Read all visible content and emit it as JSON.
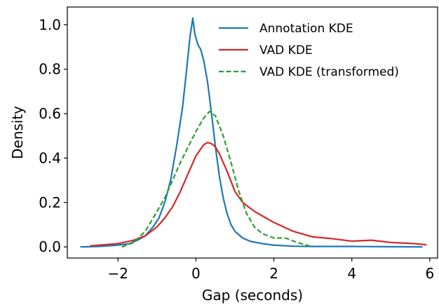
{
  "chart_data": {
    "type": "line",
    "xlabel": "Gap (seconds)",
    "ylabel": "Density",
    "xlim": [
      -3.3,
      6.2
    ],
    "ylim": [
      -0.05,
      1.08
    ],
    "x_ticks": [
      -2,
      0,
      2,
      4,
      6
    ],
    "x_tick_labels": [
      "−2",
      "0",
      "2",
      "4",
      "6"
    ],
    "y_ticks": [
      0.0,
      0.2,
      0.4,
      0.6,
      0.8,
      1.0
    ],
    "y_tick_labels": [
      "0.0",
      "0.2",
      "0.4",
      "0.6",
      "0.8",
      "1.0"
    ],
    "grid": false,
    "legend_position": "top-right",
    "series": [
      {
        "name": "Annotation KDE",
        "color": "#1f77b4",
        "dash": "solid",
        "x": [
          -2.95,
          -2.5,
          -2.0,
          -1.7,
          -1.5,
          -1.3,
          -1.1,
          -0.95,
          -0.8,
          -0.65,
          -0.5,
          -0.35,
          -0.25,
          -0.15,
          -0.08,
          -0.03,
          0.05,
          0.12,
          0.2,
          0.3,
          0.4,
          0.5,
          0.6,
          0.7,
          0.8,
          0.9,
          1.0,
          1.2,
          1.4,
          1.7,
          2.0,
          2.5,
          3.0,
          4.0,
          5.0,
          5.8
        ],
        "y": [
          0.0,
          0.002,
          0.008,
          0.015,
          0.03,
          0.05,
          0.09,
          0.13,
          0.2,
          0.3,
          0.45,
          0.62,
          0.78,
          0.95,
          1.03,
          0.96,
          0.91,
          0.89,
          0.84,
          0.74,
          0.6,
          0.45,
          0.32,
          0.22,
          0.15,
          0.1,
          0.07,
          0.04,
          0.025,
          0.015,
          0.008,
          0.003,
          0.002,
          0.002,
          0.001,
          0.0
        ]
      },
      {
        "name": "VAD KDE",
        "color": "#d62728",
        "dash": "solid",
        "x": [
          -2.7,
          -2.0,
          -1.6,
          -1.3,
          -1.0,
          -0.8,
          -0.6,
          -0.4,
          -0.2,
          0.0,
          0.2,
          0.3,
          0.4,
          0.5,
          0.6,
          0.8,
          1.0,
          1.2,
          1.5,
          2.0,
          2.5,
          3.0,
          3.5,
          4.0,
          4.5,
          5.0,
          5.5,
          5.9
        ],
        "y": [
          0.005,
          0.015,
          0.03,
          0.05,
          0.09,
          0.13,
          0.18,
          0.25,
          0.33,
          0.41,
          0.46,
          0.47,
          0.465,
          0.45,
          0.42,
          0.34,
          0.25,
          0.2,
          0.16,
          0.11,
          0.07,
          0.045,
          0.037,
          0.026,
          0.03,
          0.02,
          0.016,
          0.01
        ]
      },
      {
        "name": "VAD KDE (transformed)",
        "color": "#2ca02c",
        "dash": "dashed",
        "x": [
          -1.9,
          -1.6,
          -1.3,
          -1.0,
          -0.8,
          -0.6,
          -0.4,
          -0.2,
          0.0,
          0.2,
          0.35,
          0.5,
          0.7,
          0.9,
          1.1,
          1.3,
          1.5,
          1.7,
          2.0,
          2.3,
          2.6,
          3.0
        ],
        "y": [
          0.0,
          0.02,
          0.07,
          0.16,
          0.22,
          0.3,
          0.38,
          0.45,
          0.52,
          0.58,
          0.61,
          0.59,
          0.5,
          0.38,
          0.25,
          0.15,
          0.09,
          0.06,
          0.04,
          0.04,
          0.02,
          0.0
        ]
      }
    ]
  }
}
